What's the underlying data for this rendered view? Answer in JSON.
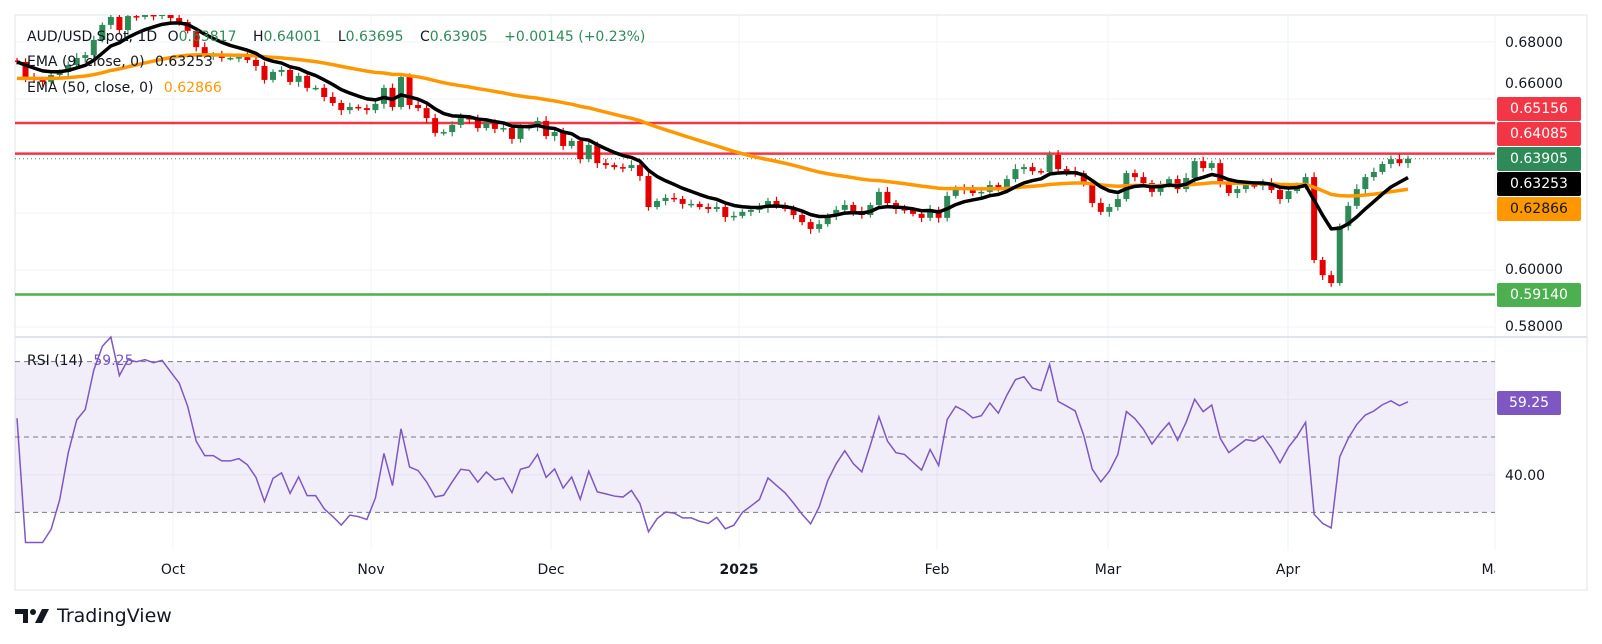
{
  "legend": {
    "symbol": "AUD/USD Spot, 1D",
    "open_label": "O",
    "open": "0.63817",
    "high_label": "H",
    "high": "0.64001",
    "low_label": "L",
    "low": "0.63695",
    "close_label": "C",
    "close": "0.63905",
    "change": "+0.00145 (+0.23%)",
    "ema9_label": "EMA (9, close, 0)",
    "ema9_value": "0.63253",
    "ema50_label": "EMA (50, close, 0)",
    "ema50_value": "0.62866",
    "rsi_label": "RSI (14)",
    "rsi_value": "59.25"
  },
  "price_axis": {
    "ticks": [
      "0.68000",
      "0.66000",
      "0.60000",
      "0.58000"
    ],
    "tick_values": [
      0.68,
      0.66,
      0.6,
      0.58
    ],
    "boxes": [
      {
        "text": "0.65156",
        "value": 0.65156,
        "color": "#f23645",
        "text_color": "#ffffff"
      },
      {
        "text": "0.64085",
        "value": 0.64085,
        "color": "#f23645",
        "text_color": "#ffffff"
      },
      {
        "text": "0.63905",
        "value": 0.63905,
        "color": "#2e8b57",
        "text_color": "#ffffff"
      },
      {
        "text": "0.63253",
        "value": 0.63253,
        "color": "#000000",
        "text_color": "#ffffff"
      },
      {
        "text": "0.62866",
        "value": 0.62866,
        "color": "#ff9800",
        "text_color": "#131722"
      },
      {
        "text": "0.59140",
        "value": 0.5914,
        "color": "#4caf50",
        "text_color": "#ffffff"
      }
    ]
  },
  "rsi_axis": {
    "tick": "40.00",
    "tick_value": 40,
    "box": "59.25",
    "box_value": 59.25,
    "color": "#7e57c2"
  },
  "x_axis": {
    "labels": [
      "Oct",
      "Nov",
      "Dec",
      "2025",
      "Feb",
      "Mar",
      "Apr",
      "May"
    ]
  },
  "brand": {
    "name": "TradingView"
  },
  "chart_data": {
    "type": "candlestick",
    "title": "AUD/USD Spot, 1D",
    "timeframe": "1D",
    "ylim": [
      0.575,
      0.6895
    ],
    "grid": true,
    "colors": {
      "up": "#2e8b57",
      "down": "#e50000",
      "ema9": "#000000",
      "ema50": "#ff9800",
      "rsi": "#7e57c2",
      "resistance": "#f23645",
      "support": "#4caf50"
    },
    "horizontal_lines": [
      {
        "value": 0.65156,
        "color": "#f23645"
      },
      {
        "value": 0.64085,
        "color": "#f23645"
      },
      {
        "value": 0.5914,
        "color": "#4caf50"
      }
    ],
    "last_close": 0.63905,
    "closes": [
      0.673,
      0.6674,
      0.6667,
      0.666,
      0.6684,
      0.6695,
      0.6719,
      0.6744,
      0.6754,
      0.6807,
      0.686,
      0.6888,
      0.6842,
      0.6891,
      0.6888,
      0.6895,
      0.6891,
      0.6898,
      0.6884,
      0.687,
      0.6839,
      0.6782,
      0.6754,
      0.6754,
      0.6744,
      0.6744,
      0.6747,
      0.6737,
      0.6716,
      0.6667,
      0.6695,
      0.6702,
      0.666,
      0.6681,
      0.6639,
      0.6639,
      0.6607,
      0.6586,
      0.6561,
      0.6572,
      0.6568,
      0.6561,
      0.6583,
      0.6639,
      0.6572,
      0.6677,
      0.6579,
      0.6568,
      0.6533,
      0.6481,
      0.6484,
      0.6509,
      0.6533,
      0.653,
      0.6498,
      0.6516,
      0.6495,
      0.6498,
      0.646,
      0.6498,
      0.6502,
      0.6523,
      0.647,
      0.6484,
      0.6435,
      0.6453,
      0.6389,
      0.6439,
      0.6375,
      0.6368,
      0.6361,
      0.6358,
      0.6368,
      0.633,
      0.6221,
      0.6242,
      0.6253,
      0.6249,
      0.6232,
      0.6232,
      0.6221,
      0.6214,
      0.6221,
      0.6186,
      0.619,
      0.6204,
      0.6211,
      0.6218,
      0.6242,
      0.6228,
      0.6214,
      0.6193,
      0.6168,
      0.6144,
      0.6161,
      0.619,
      0.6211,
      0.6228,
      0.6207,
      0.6193,
      0.6228,
      0.6274,
      0.6235,
      0.6214,
      0.6211,
      0.6197,
      0.6183,
      0.6211,
      0.6183,
      0.626,
      0.6288,
      0.6281,
      0.627,
      0.6274,
      0.6298,
      0.6284,
      0.6319,
      0.6354,
      0.6361,
      0.6347,
      0.6344,
      0.6404,
      0.6354,
      0.6347,
      0.634,
      0.6302,
      0.6235,
      0.6204,
      0.6221,
      0.6249,
      0.634,
      0.6326,
      0.6305,
      0.6274,
      0.6298,
      0.6319,
      0.6284,
      0.6323,
      0.6382,
      0.6358,
      0.6375,
      0.6305,
      0.627,
      0.6284,
      0.6298,
      0.6295,
      0.6305,
      0.6281,
      0.6249,
      0.6277,
      0.6298,
      0.6326,
      0.6035,
      0.5982,
      0.5954,
      0.6154,
      0.6225,
      0.6284,
      0.6326,
      0.6344,
      0.6372,
      0.6389,
      0.6375,
      0.63905
    ],
    "rsi": {
      "period": 14,
      "bands": [
        70,
        50,
        30
      ],
      "ylim": [
        20,
        80
      ]
    }
  }
}
